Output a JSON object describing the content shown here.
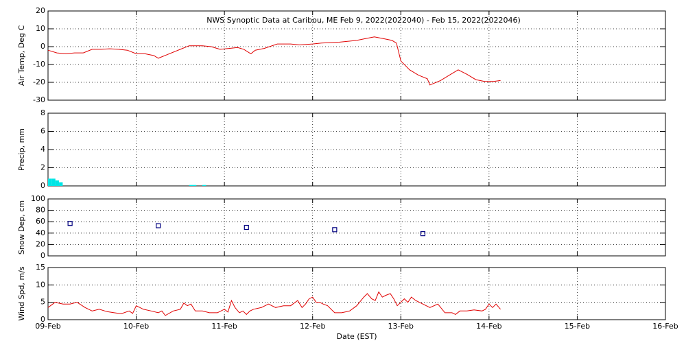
{
  "chart_data": [
    {
      "type": "line",
      "title": "NWS Synoptic Data at Caribou, ME   Feb  9, 2022(2022040) - Feb 15, 2022(2022046)",
      "ylabel": "Air Temp, Deg C",
      "color": "#e00000",
      "x": [
        0,
        0.1,
        0.2,
        0.3,
        0.4,
        0.5,
        0.6,
        0.7,
        0.8,
        0.9,
        1.0,
        1.1,
        1.2,
        1.25,
        1.35,
        1.5,
        1.6,
        1.75,
        1.85,
        1.95,
        2.05,
        2.15,
        2.22,
        2.3,
        2.35,
        2.45,
        2.6,
        2.75,
        2.85,
        3.0,
        3.1,
        3.3,
        3.5,
        3.6,
        3.7,
        3.8,
        3.9,
        3.95,
        4.0,
        4.1,
        4.2,
        4.3,
        4.33,
        4.45,
        4.55,
        4.65,
        4.75,
        4.85,
        4.95,
        5.05,
        5.13
      ],
      "values": [
        -2,
        -3.5,
        -4,
        -3.5,
        -3.5,
        -1.5,
        -1.5,
        -1.2,
        -1.5,
        -2,
        -4,
        -4,
        -5,
        -6.5,
        -4.5,
        -1.5,
        0.5,
        0.5,
        0,
        -1.5,
        -1,
        -0.5,
        -1.5,
        -4,
        -2,
        -1,
        1.5,
        1.5,
        1,
        1.5,
        2,
        2.5,
        3.5,
        4.5,
        5.5,
        4.5,
        3.5,
        2,
        -8,
        -13,
        -16,
        -18,
        -21.5,
        -19,
        -16,
        -13,
        -15.5,
        -18.5,
        -19.5,
        -19.5,
        -19
      ],
      "xlim": [
        0,
        7
      ],
      "xticks": [
        0,
        1,
        2,
        3,
        4,
        5,
        6,
        7
      ],
      "ylim": [
        -30,
        20
      ],
      "yticks": [
        -30,
        -20,
        -10,
        0,
        10,
        20
      ],
      "grid": true
    },
    {
      "type": "bar",
      "ylabel": "Precip, mm",
      "color": "#00e5e5",
      "x": [
        0,
        0.042,
        0.083,
        0.125,
        1.6,
        1.64,
        1.75
      ],
      "values": [
        0.8,
        0.8,
        0.6,
        0.4,
        0.1,
        0.1,
        0.1
      ],
      "xlim": [
        0,
        7
      ],
      "xticks": [
        0,
        1,
        2,
        3,
        4,
        5,
        6,
        7
      ],
      "ylim": [
        0,
        8
      ],
      "yticks": [
        0,
        2,
        4,
        6,
        8
      ],
      "grid": true
    },
    {
      "type": "scatter",
      "ylabel": "Snow Dep, cm",
      "color": "#000080",
      "x": [
        0.25,
        1.25,
        2.25,
        3.25,
        4.25
      ],
      "values": [
        57,
        53,
        50,
        46,
        39
      ],
      "xlim": [
        0,
        7
      ],
      "xticks": [
        0,
        1,
        2,
        3,
        4,
        5,
        6,
        7
      ],
      "ylim": [
        0,
        100
      ],
      "yticks": [
        0,
        20,
        40,
        60,
        80,
        100
      ],
      "grid": true
    },
    {
      "type": "line",
      "ylabel": "Wind Spd, m/s",
      "xlabel": "Date (EST)",
      "color": "#e00000",
      "x": [
        0,
        0.08,
        0.17,
        0.25,
        0.33,
        0.42,
        0.5,
        0.58,
        0.67,
        0.75,
        0.83,
        0.92,
        0.96,
        1.0,
        1.08,
        1.17,
        1.25,
        1.29,
        1.33,
        1.42,
        1.5,
        1.54,
        1.58,
        1.62,
        1.67,
        1.75,
        1.83,
        1.92,
        2.0,
        2.04,
        2.08,
        2.12,
        2.17,
        2.21,
        2.25,
        2.29,
        2.33,
        2.42,
        2.5,
        2.58,
        2.67,
        2.75,
        2.83,
        2.88,
        2.92,
        2.96,
        3.0,
        3.04,
        3.08,
        3.12,
        3.17,
        3.21,
        3.25,
        3.33,
        3.42,
        3.5,
        3.58,
        3.62,
        3.67,
        3.71,
        3.75,
        3.79,
        3.83,
        3.88,
        3.92,
        3.96,
        4.0,
        4.04,
        4.08,
        4.12,
        4.17,
        4.25,
        4.33,
        4.42,
        4.5,
        4.58,
        4.62,
        4.67,
        4.75,
        4.83,
        4.92,
        4.96,
        5.0,
        5.04,
        5.08,
        5.13
      ],
      "values": [
        3.5,
        5,
        4.5,
        4.5,
        5,
        3.5,
        2.5,
        3,
        2.3,
        2,
        1.7,
        2.5,
        1.8,
        4,
        3,
        2.5,
        2,
        2.5,
        1.2,
        2.5,
        3,
        4.8,
        4,
        4.5,
        2.5,
        2.5,
        2,
        2,
        3,
        2.2,
        5.5,
        3.5,
        2,
        2.5,
        1.5,
        2.5,
        3,
        3.5,
        4.5,
        3.5,
        4,
        4,
        5.5,
        3.5,
        4.5,
        6,
        6.5,
        5,
        5,
        4.5,
        4,
        3,
        2,
        2,
        2.5,
        4,
        6.5,
        7.5,
        6,
        5.5,
        8,
        6.5,
        7,
        7.5,
        6,
        4,
        5,
        6,
        5,
        6.5,
        5.5,
        4.5,
        3.5,
        4.5,
        2,
        2,
        1.5,
        2.5,
        2.5,
        2.8,
        2.5,
        3,
        4.5,
        3.5,
        4.5,
        3
      ],
      "xlim": [
        0,
        7
      ],
      "xticks": [
        {
          "value": 0,
          "label": "09-Feb"
        },
        {
          "value": 1,
          "label": "10-Feb"
        },
        {
          "value": 2,
          "label": "11-Feb"
        },
        {
          "value": 3,
          "label": "12-Feb"
        },
        {
          "value": 4,
          "label": "13-Feb"
        },
        {
          "value": 5,
          "label": "14-Feb"
        },
        {
          "value": 6,
          "label": "15-Feb"
        },
        {
          "value": 7,
          "label": "16-Feb"
        }
      ],
      "ylim": [
        0,
        15
      ],
      "yticks": [
        0,
        5,
        10,
        15
      ],
      "grid": true
    }
  ]
}
